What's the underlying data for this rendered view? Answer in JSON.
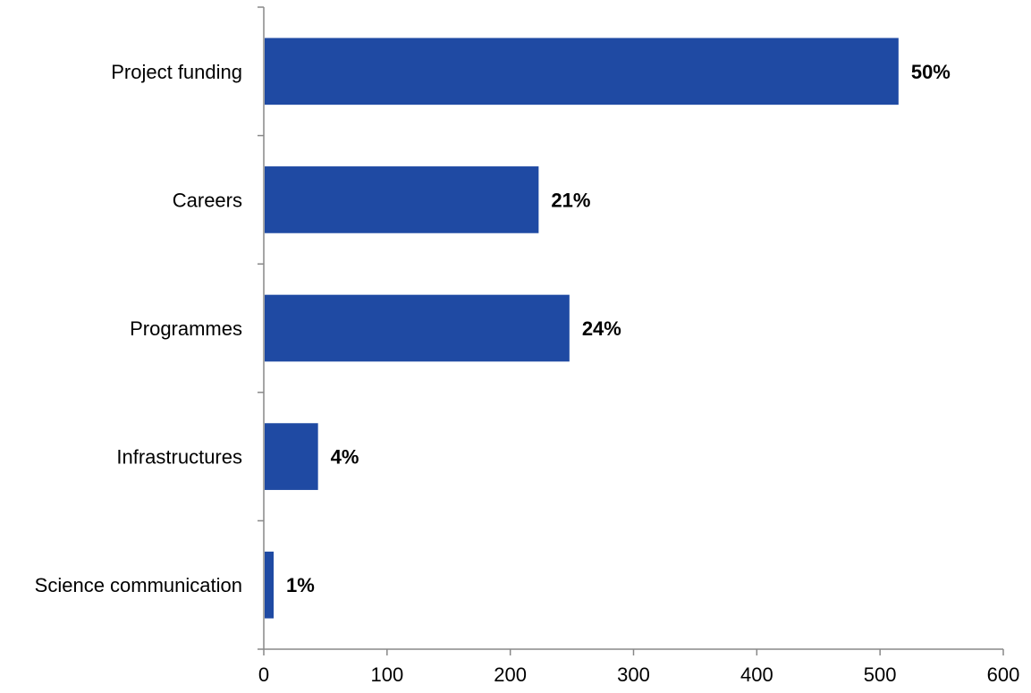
{
  "chart_data": {
    "type": "bar",
    "orientation": "horizontal",
    "categories": [
      "Project funding",
      "Careers",
      "Programmes",
      "Infrastructures",
      "Science communication"
    ],
    "values": [
      515,
      223,
      248,
      44,
      8
    ],
    "data_labels": [
      "50%",
      "21%",
      "24%",
      "4%",
      "1%"
    ],
    "xlim": [
      0,
      600
    ],
    "x_ticks": [
      0,
      100,
      200,
      300,
      400,
      500,
      600
    ],
    "x_tick_labels": [
      "0",
      "100",
      "200",
      "300",
      "400",
      "500",
      "600"
    ],
    "title": "",
    "xlabel": "",
    "ylabel": "",
    "grid": false,
    "legend": "none",
    "bar_color": "#1f4aa3"
  }
}
